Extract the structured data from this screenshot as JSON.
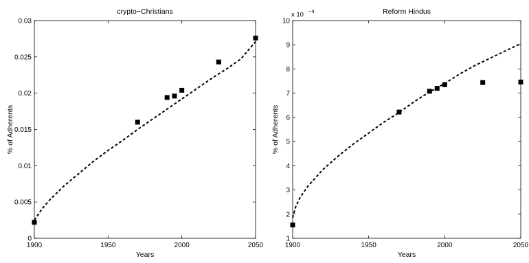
{
  "chart_data": [
    {
      "type": "scatter",
      "title": "crypto−Christians",
      "xlabel": "Years",
      "ylabel": "% of Adherents",
      "xlim": [
        1900,
        2050
      ],
      "ylim": [
        0,
        0.03
      ],
      "xticks": [
        "1900",
        "1950",
        "2000",
        "2050"
      ],
      "yticks": [
        "0",
        "0.005",
        "0.01",
        "0.015",
        "0.02",
        "0.025",
        "0.03"
      ],
      "ytick_values": [
        0,
        0.005,
        0.01,
        0.015,
        0.02,
        0.025,
        0.03
      ],
      "xtick_values": [
        1900,
        1950,
        2000,
        2050
      ],
      "y_exponent_label": "",
      "grid": false,
      "series": [
        {
          "kind": "markers",
          "marker": "square",
          "x": [
            1900,
            1970,
            1990,
            1995,
            2000,
            2025,
            2050
          ],
          "y": [
            0.0022,
            0.016,
            0.0194,
            0.0196,
            0.0204,
            0.0243,
            0.0276
          ]
        },
        {
          "kind": "dashed-line",
          "x": [
            1900,
            1905,
            1910,
            1920,
            1930,
            1940,
            1950,
            1960,
            1970,
            1980,
            1990,
            2000,
            2010,
            2020,
            2030,
            2040,
            2050
          ],
          "y": [
            0.0025,
            0.004,
            0.0052,
            0.0072,
            0.0089,
            0.0106,
            0.0121,
            0.0135,
            0.015,
            0.0164,
            0.0178,
            0.0192,
            0.0206,
            0.022,
            0.0233,
            0.0247,
            0.0271
          ]
        }
      ]
    },
    {
      "type": "scatter",
      "title": "Reform Hindus",
      "xlabel": "Years",
      "ylabel": "% of Adherents",
      "xlim": [
        1900,
        2050
      ],
      "ylim": [
        1,
        10
      ],
      "xticks": [
        "1900",
        "1950",
        "2000",
        "2050"
      ],
      "yticks": [
        "1",
        "2",
        "3",
        "4",
        "5",
        "6",
        "7",
        "8",
        "9",
        "10"
      ],
      "ytick_values": [
        1,
        2,
        3,
        4,
        5,
        6,
        7,
        8,
        9,
        10
      ],
      "xtick_values": [
        1900,
        1950,
        2000,
        2050
      ],
      "y_exponent_label": "x 10",
      "y_exponent_power": "−4",
      "grid": false,
      "series": [
        {
          "kind": "markers",
          "marker": "square",
          "x": [
            1900,
            1970,
            1990,
            1995,
            2000,
            2025,
            2050
          ],
          "y": [
            1.55,
            6.22,
            7.08,
            7.2,
            7.35,
            7.44,
            7.46
          ]
        },
        {
          "kind": "dashed-line",
          "x": [
            1900,
            1902,
            1905,
            1910,
            1920,
            1930,
            1940,
            1950,
            1960,
            1970,
            1980,
            1990,
            2000,
            2010,
            2020,
            2030,
            2040,
            2050
          ],
          "y": [
            1.85,
            2.3,
            2.7,
            3.15,
            3.85,
            4.4,
            4.9,
            5.35,
            5.8,
            6.2,
            6.65,
            7.05,
            7.4,
            7.8,
            8.15,
            8.45,
            8.75,
            9.05
          ]
        }
      ]
    }
  ]
}
